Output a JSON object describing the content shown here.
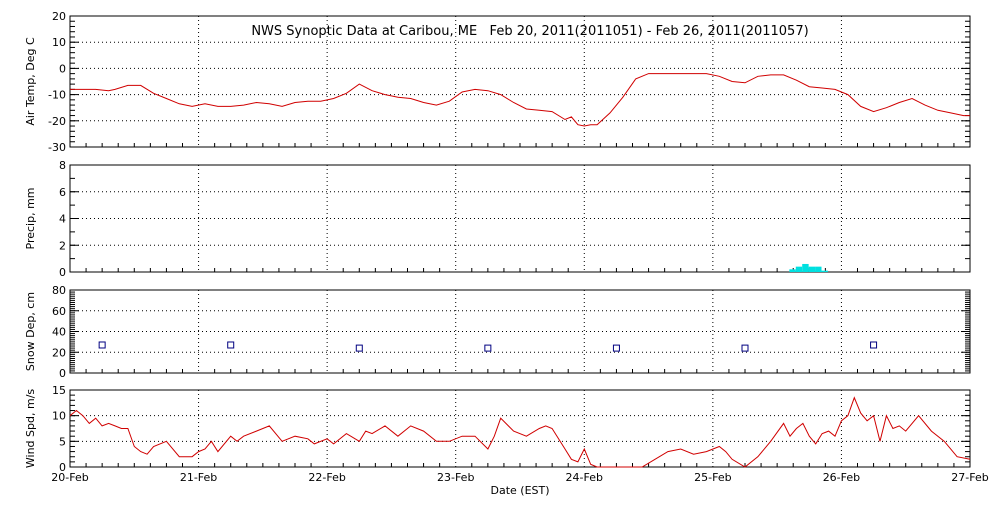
{
  "chart_data": {
    "title": "NWS Synoptic Data at Caribou, ME   Feb 20, 2011(2011051) - Feb 26, 2011(2011057)",
    "xlabel": "Date (EST)",
    "x_domain": [
      "2011-02-20",
      "2011-02-27"
    ],
    "x_ticks": [
      "20-Feb",
      "21-Feb",
      "22-Feb",
      "23-Feb",
      "24-Feb",
      "25-Feb",
      "26-Feb",
      "27-Feb"
    ],
    "grid": "dotted",
    "panels": [
      {
        "type": "line",
        "ylabel": "Air Temp, Deg C",
        "ylim": [
          -30,
          20
        ],
        "yticks": [
          -30,
          -20,
          -10,
          0,
          10,
          20
        ],
        "color": "#d00000",
        "x": [
          0,
          0.1,
          0.2,
          0.3,
          0.35,
          0.45,
          0.55,
          0.65,
          0.75,
          0.85,
          0.95,
          1.05,
          1.15,
          1.25,
          1.35,
          1.45,
          1.55,
          1.65,
          1.75,
          1.85,
          1.95,
          2.05,
          2.15,
          2.25,
          2.35,
          2.45,
          2.5,
          2.55,
          2.65,
          2.75,
          2.85,
          2.95,
          3.05,
          3.15,
          3.25,
          3.35,
          3.45,
          3.55,
          3.65,
          3.75,
          3.85,
          3.9,
          3.95,
          4.0,
          4.05,
          4.1,
          4.2,
          4.3,
          4.4,
          4.5,
          4.55,
          4.65,
          4.75,
          4.85,
          4.95,
          5.05,
          5.15,
          5.25,
          5.35,
          5.45,
          5.55,
          5.65,
          5.75,
          5.85,
          5.95,
          6.05,
          6.15,
          6.25,
          6.35,
          6.45,
          6.55,
          6.65,
          6.75,
          6.85,
          6.95,
          7.0
        ],
        "y": [
          -8,
          -8,
          -8,
          -8.5,
          -8,
          -6.5,
          -6.5,
          -9.5,
          -11.5,
          -13.5,
          -14.5,
          -13.5,
          -14.5,
          -14.5,
          -14,
          -13,
          -13.5,
          -14.5,
          -13,
          -12.5,
          -12.5,
          -11.5,
          -9.5,
          -6,
          -8.5,
          -10,
          -10.5,
          -11,
          -11.5,
          -13,
          -14,
          -12.5,
          -9,
          -8,
          -8.5,
          -10,
          -13,
          -15.5,
          -16,
          -16.5,
          -19.5,
          -18.5,
          -21.5,
          -22,
          -21.5,
          -21.5,
          -17,
          -11,
          -4,
          -2,
          -2,
          -2,
          -2,
          -2,
          -2,
          -3,
          -5,
          -5.5,
          -3,
          -2.5,
          -2.5,
          -4.5,
          -7,
          -7.5,
          -8,
          -10,
          -14.5,
          -16.5,
          -15,
          -13,
          -11.5,
          -14,
          -16,
          -17,
          -18,
          -18
        ]
      },
      {
        "type": "bar",
        "ylabel": "Precip, mm",
        "ylim": [
          0,
          8
        ],
        "yticks": [
          0,
          2,
          4,
          6,
          8
        ],
        "color": "#00e0e0",
        "bar_width_days": 0.05,
        "x": [
          5.62,
          5.67,
          5.72,
          5.77,
          5.82,
          5.87
        ],
        "values": [
          0.2,
          0.4,
          0.6,
          0.4,
          0.4,
          0.1
        ]
      },
      {
        "type": "scatter",
        "ylabel": "Snow Dep, cm",
        "ylim": [
          0,
          80
        ],
        "yticks": [
          0,
          20,
          40,
          60,
          80
        ],
        "color": "#000080",
        "x": [
          0.25,
          1.25,
          2.25,
          3.25,
          4.25,
          5.25,
          6.25
        ],
        "values": [
          27,
          27,
          24,
          24,
          24,
          24,
          27
        ]
      },
      {
        "type": "line",
        "ylabel": "Wind Spd, m/s",
        "ylim": [
          0,
          15
        ],
        "yticks": [
          0,
          5,
          10,
          15
        ],
        "color": "#d00000",
        "x": [
          0,
          0.05,
          0.1,
          0.15,
          0.2,
          0.25,
          0.3,
          0.35,
          0.4,
          0.45,
          0.5,
          0.55,
          0.6,
          0.65,
          0.75,
          0.85,
          0.95,
          1.0,
          1.05,
          1.1,
          1.15,
          1.25,
          1.3,
          1.35,
          1.45,
          1.55,
          1.65,
          1.75,
          1.85,
          1.9,
          2.0,
          2.05,
          2.15,
          2.25,
          2.3,
          2.35,
          2.45,
          2.55,
          2.65,
          2.75,
          2.85,
          2.95,
          3.05,
          3.15,
          3.25,
          3.3,
          3.35,
          3.45,
          3.55,
          3.65,
          3.7,
          3.75,
          3.85,
          3.9,
          3.95,
          4.0,
          4.05,
          4.1,
          4.15,
          4.25,
          4.35,
          4.45,
          4.55,
          4.65,
          4.75,
          4.85,
          4.95,
          5.05,
          5.1,
          5.15,
          5.25,
          5.35,
          5.45,
          5.55,
          5.6,
          5.65,
          5.7,
          5.75,
          5.8,
          5.85,
          5.9,
          5.95,
          6.0,
          6.05,
          6.1,
          6.15,
          6.2,
          6.25,
          6.3,
          6.35,
          6.4,
          6.45,
          6.5,
          6.6,
          6.7,
          6.8,
          6.9,
          7.0
        ],
        "y": [
          10,
          11,
          10,
          8.5,
          9.5,
          8,
          8.5,
          8,
          7.5,
          7.5,
          4,
          3,
          2.5,
          4,
          5,
          2,
          2,
          3,
          3.5,
          5,
          3,
          6,
          5,
          6,
          7,
          8,
          5,
          6,
          5.5,
          4.5,
          5.5,
          4.5,
          6.5,
          5,
          7,
          6.5,
          8,
          6,
          8,
          7,
          5,
          5,
          6,
          6,
          3.5,
          6,
          9.5,
          7,
          6,
          7.5,
          8,
          7.5,
          3.5,
          1.5,
          1,
          3.5,
          0.5,
          0,
          0,
          0,
          0,
          0,
          1.5,
          3,
          3.5,
          2.5,
          3,
          4,
          3,
          1.5,
          0,
          2,
          5,
          8.5,
          6,
          7.5,
          8.5,
          6,
          4.5,
          6.5,
          7,
          6,
          9,
          10,
          13.5,
          10.5,
          9,
          10,
          5,
          10,
          7.5,
          8,
          7,
          10,
          7,
          5,
          2,
          1.5
        ]
      }
    ]
  }
}
